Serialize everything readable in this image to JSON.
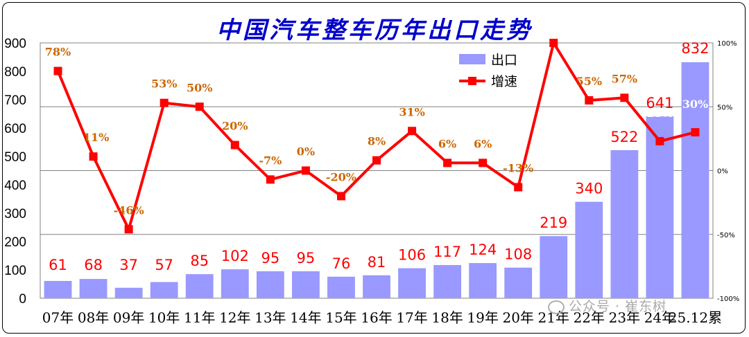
{
  "chart_data": {
    "type": "bar+line",
    "title": "中国汽车整车历年出口走势",
    "categories": [
      "07年",
      "08年",
      "09年",
      "10年",
      "11年",
      "12年",
      "13年",
      "14年",
      "15年",
      "16年",
      "17年",
      "18年",
      "19年",
      "20年",
      "21年",
      "22年",
      "23年",
      "24年",
      "25.12累"
    ],
    "series": [
      {
        "name": "出口",
        "type": "bar",
        "axis": "left",
        "color": "#9999ff",
        "values": [
          61,
          68,
          37,
          57,
          85,
          102,
          95,
          95,
          76,
          81,
          106,
          117,
          124,
          108,
          219,
          340,
          522,
          641,
          832
        ],
        "labels": [
          "61",
          "68",
          "37",
          "57",
          "85",
          "102",
          "95",
          "95",
          "76",
          "81",
          "106",
          "117",
          "124",
          "108",
          "219",
          "340",
          "522",
          "641",
          "832"
        ]
      },
      {
        "name": "增速",
        "type": "line",
        "axis": "right",
        "color": "#ff0000",
        "values": [
          78,
          11,
          -46,
          53,
          50,
          20,
          -7,
          0,
          -20,
          8,
          31,
          6,
          6,
          -13,
          100,
          55,
          57,
          23,
          30
        ],
        "labels": [
          "78%",
          "11%",
          "-46%",
          "53%",
          "50%",
          "20%",
          "-7%",
          "0%",
          "-20%",
          "8%",
          "31%",
          "6%",
          "6%",
          "-13%",
          "",
          "55%",
          "57%",
          "23%",
          "30%"
        ]
      }
    ],
    "y_left": {
      "min": 0,
      "max": 900,
      "ticks": [
        "0",
        "100",
        "200",
        "300",
        "400",
        "500",
        "600",
        "700",
        "800",
        "900"
      ]
    },
    "y_right": {
      "min": -100,
      "max": 100,
      "ticks": [
        "-100%",
        "-50%",
        "0%",
        "50%",
        "100%"
      ]
    },
    "legend_position": "top-right",
    "grid": true
  },
  "watermark": "公众号 · 崔东树"
}
